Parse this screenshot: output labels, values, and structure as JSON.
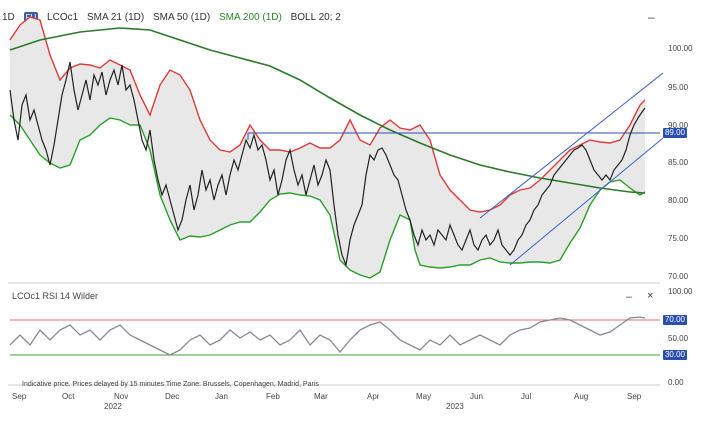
{
  "header": {
    "period": "1D",
    "symbol_badge": "FU",
    "instrument": "LCOc1",
    "sma21": "SMA 21 (1D)",
    "sma50": "SMA 50 (1D)",
    "sma200": "SMA 200 (1D)",
    "boll": "BOLL 20; 2",
    "minimize_label": "–"
  },
  "price_axis": {
    "ticks": [
      "100.00",
      "95.00",
      "90.00",
      "85.00",
      "80.00",
      "75.00",
      "70.00"
    ],
    "tags": [
      {
        "text": "89.00",
        "color": "#2a4fb0"
      }
    ]
  },
  "rsi": {
    "title": "LCOc1  RSI 14 Wilder",
    "ticks": [
      "100.00",
      "70.00",
      "50.00",
      "30.00",
      "0.00"
    ],
    "tags": [
      {
        "text": "70.00",
        "color": "#2a4fb0"
      },
      {
        "text": "30.00",
        "color": "#2a4fb0"
      }
    ],
    "minimize_label": "–",
    "close_label": "×"
  },
  "disclaimer": "Indicative price. Prices delayed by 15 minutes    Time Zone: Brussels, Copenhagen, Madrid, Paris",
  "time_axis": {
    "months": [
      "Sep",
      "Oct",
      "Nov",
      "Dec",
      "Jan",
      "Feb",
      "Mar",
      "Apr",
      "May",
      "Jun",
      "Jul",
      "Aug",
      "Sep"
    ],
    "years": [
      "2022",
      "2023"
    ]
  },
  "colors": {
    "candles": "#222222",
    "bollinger_fill": "#e6e6e6",
    "bollinger_upper": "#e03a3a",
    "bollinger_lower": "#2aa02a",
    "sma200": "#2a7a2a",
    "trend_channel": "#3b5fc8",
    "horizontal_level": "#2a4fb0",
    "rsi_line": "#8a8a8a",
    "rsi_upper": "#e07070",
    "rsi_lower": "#3aa03a"
  }
}
